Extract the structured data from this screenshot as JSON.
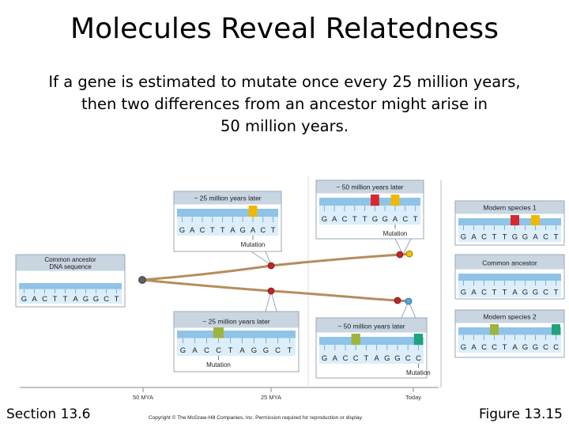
{
  "slide": {
    "title": "Molecules Reveal Relatedness",
    "subtitle_lines": [
      "If a gene is estimated to mutate once every 25 million years,",
      "then two differences from an ancestor might arise in",
      "50 million years."
    ],
    "section": "Section 13.6",
    "figure": "Figure 13.15",
    "copyright": "Copyright © The McGraw-Hill Companies, Inc. Permission required for reproduction or display."
  },
  "colors": {
    "strip": "#8fc3e8",
    "strip_light": "#dceefa",
    "panel_bg": "#ffffff",
    "panel_border": "#9aa8b6",
    "header_bg": "#c9d6e2",
    "red": "#d7282f",
    "yellow": "#f0b800",
    "olive": "#9fb43c",
    "blue_mut": "#4a8fd4",
    "teal": "#1fa37a",
    "branch": "#b58d5e",
    "axis": "#888888",
    "node_red": "#c0262b",
    "node_dark": "#5a5f6a",
    "node_yellow": "#f2c200",
    "node_blue": "#5aa7de"
  },
  "panels": {
    "ancestor": {
      "header_lines": [
        "Common ancestor",
        "DNA sequence"
      ],
      "sequence": [
        "G",
        "A",
        "C",
        "T",
        "T",
        "A",
        "G",
        "G",
        "C",
        "T"
      ],
      "highlights": []
    },
    "upper_25": {
      "header": "~ 25 million years later",
      "sequence": [
        "G",
        "A",
        "C",
        "T",
        "T",
        "A",
        "G",
        "A",
        "C",
        "T"
      ],
      "highlights": [
        {
          "index": 7,
          "color": "yellow"
        }
      ],
      "mutation_label": "Mutation"
    },
    "upper_50": {
      "header": "~ 50 million years later",
      "sequence": [
        "G",
        "A",
        "C",
        "T",
        "T",
        "G",
        "G",
        "A",
        "C",
        "T"
      ],
      "highlights": [
        {
          "index": 5,
          "color": "red"
        },
        {
          "index": 7,
          "color": "yellow"
        }
      ],
      "mutation_label": "Mutation"
    },
    "lower_25": {
      "header": "~ 25 million years later",
      "sequence": [
        "G",
        "A",
        "C",
        "C",
        "T",
        "A",
        "G",
        "G",
        "C",
        "T"
      ],
      "highlights": [
        {
          "index": 3,
          "color": "olive"
        }
      ],
      "mutation_label": "Mutation"
    },
    "lower_50": {
      "header": "~ 50 million years later",
      "sequence": [
        "G",
        "A",
        "C",
        "C",
        "T",
        "A",
        "G",
        "G",
        "C",
        "C"
      ],
      "highlights": [
        {
          "index": 3,
          "color": "olive"
        },
        {
          "index": 9,
          "color": "teal"
        }
      ],
      "mutation_label": "Mutation"
    },
    "modern1": {
      "header": "Modern species 1",
      "sequence": [
        "G",
        "A",
        "C",
        "T",
        "T",
        "G",
        "G",
        "A",
        "C",
        "T"
      ],
      "highlights": [
        {
          "index": 5,
          "color": "red"
        },
        {
          "index": 7,
          "color": "yellow"
        }
      ]
    },
    "common": {
      "header": "Common ancestor",
      "sequence": [
        "G",
        "A",
        "C",
        "T",
        "T",
        "A",
        "G",
        "G",
        "C",
        "T"
      ],
      "highlights": []
    },
    "modern2": {
      "header": "Modern species 2",
      "sequence": [
        "G",
        "A",
        "C",
        "C",
        "T",
        "A",
        "G",
        "G",
        "C",
        "C"
      ],
      "highlights": [
        {
          "index": 3,
          "color": "olive"
        },
        {
          "index": 9,
          "color": "teal"
        }
      ]
    }
  },
  "timeline": {
    "ticks": [
      "50 MYA",
      "25 MYA",
      "Today"
    ]
  }
}
